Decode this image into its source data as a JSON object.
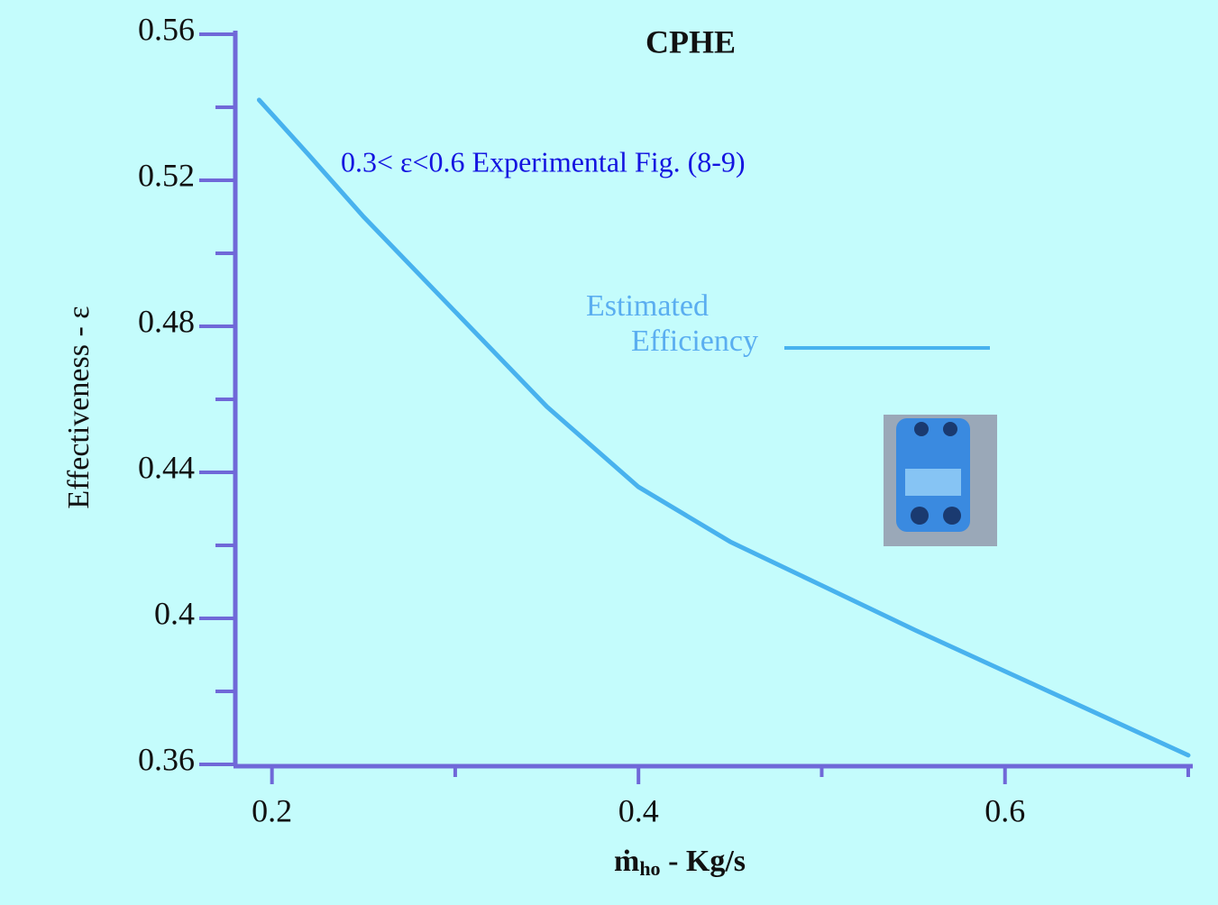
{
  "chart_data": {
    "type": "line",
    "title": "CPHE",
    "subtitle": "0.3< ε<0.6 Experimental Fig. (8-9)",
    "annotation_lines": [
      "Estimated",
      "Efficiency"
    ],
    "ylabel": "Effectiveness - ε",
    "xlabel_parts": [
      "ṁ",
      "ho",
      " - Kg/s"
    ],
    "x": [
      0.193,
      0.22,
      0.25,
      0.3,
      0.35,
      0.4,
      0.45,
      0.5,
      0.55,
      0.6,
      0.65,
      0.7
    ],
    "series": [
      {
        "color": "#48b2ee",
        "values": [
          0.542,
          0.527,
          0.51,
          0.484,
          0.458,
          0.436,
          0.421,
          0.409,
          0.397,
          0.3855,
          0.374,
          0.3625
        ]
      }
    ],
    "xlim": [
      0.18,
      0.7
    ],
    "ylim": [
      0.36,
      0.56
    ],
    "xticks": [
      0.2,
      0.4,
      0.6
    ],
    "yticks": [
      0.56,
      0.52,
      0.48,
      0.44,
      0.4,
      0.36
    ],
    "xminorticks": [
      0.3,
      0.5,
      0.7
    ],
    "yminorticks": [
      0.54,
      0.5,
      0.46,
      0.42,
      0.38
    ],
    "axis_color": "#7068d8"
  }
}
